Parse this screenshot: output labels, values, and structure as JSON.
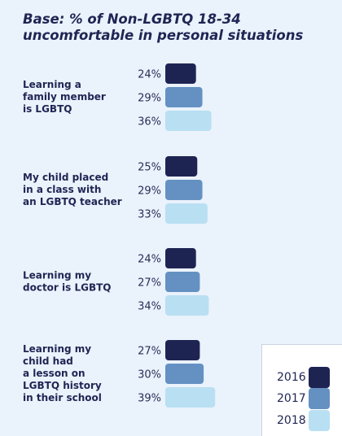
{
  "title_line1": "Base: % of Non-LGBTQ 18-34",
  "title_line2": "uncomfortable in personal situations",
  "chart_data": {
    "type": "bar",
    "orientation": "horizontal",
    "categories": [
      [
        "Learning a",
        "family member",
        "is LGBTQ"
      ],
      [
        "My child placed",
        "in a class with",
        "an LGBTQ teacher"
      ],
      [
        "Learning my",
        "doctor is LGBTQ"
      ],
      [
        "Learning my",
        "child had",
        "a lesson on",
        "LGBTQ history",
        "in their school"
      ]
    ],
    "series": [
      {
        "name": "2016",
        "color": "#1e2452",
        "values": [
          24,
          25,
          24,
          27
        ]
      },
      {
        "name": "2017",
        "color": "#6491c2",
        "values": [
          29,
          29,
          27,
          30
        ]
      },
      {
        "name": "2018",
        "color": "#b9dff2",
        "values": [
          36,
          33,
          34,
          39
        ]
      }
    ],
    "value_suffix": "%",
    "legend_position": "bottom-right"
  }
}
